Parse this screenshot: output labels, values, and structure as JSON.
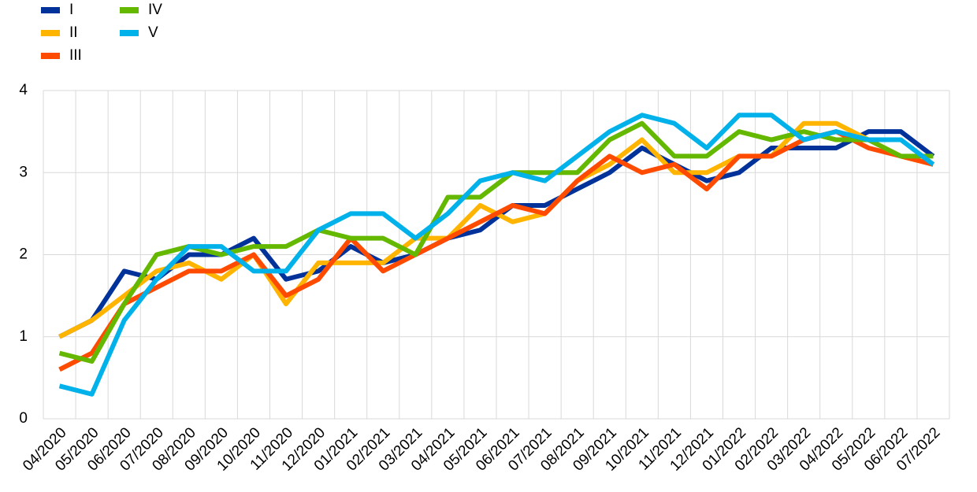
{
  "chart_data": {
    "type": "line",
    "categories": [
      "04/2020",
      "05/2020",
      "06/2020",
      "07/2020",
      "08/2020",
      "09/2020",
      "10/2020",
      "11/2020",
      "12/2020",
      "01/2021",
      "02/2021",
      "03/2021",
      "04/2021",
      "05/2021",
      "06/2021",
      "07/2021",
      "08/2021",
      "09/2021",
      "10/2021",
      "11/2021",
      "12/2021",
      "01/2022",
      "02/2022",
      "03/2022",
      "04/2022",
      "05/2022",
      "06/2022",
      "07/2022"
    ],
    "series": [
      {
        "name": "I",
        "color": "#003299",
        "values": [
          1.0,
          1.2,
          1.8,
          1.7,
          2.0,
          2.0,
          2.2,
          1.7,
          1.8,
          2.1,
          1.9,
          2.0,
          2.2,
          2.3,
          2.6,
          2.6,
          2.8,
          3.0,
          3.3,
          3.1,
          2.9,
          3.0,
          3.3,
          3.3,
          3.3,
          3.5,
          3.5,
          3.2
        ]
      },
      {
        "name": "II",
        "color": "#ffb400",
        "values": [
          1.0,
          1.2,
          1.5,
          1.8,
          1.9,
          1.7,
          2.0,
          1.4,
          1.9,
          1.9,
          1.9,
          2.2,
          2.2,
          2.6,
          2.4,
          2.5,
          2.9,
          3.1,
          3.4,
          3.0,
          3.0,
          3.2,
          3.2,
          3.6,
          3.6,
          3.4,
          3.2,
          3.1
        ]
      },
      {
        "name": "III",
        "color": "#ff4b00",
        "values": [
          0.6,
          0.8,
          1.4,
          1.6,
          1.8,
          1.8,
          2.0,
          1.5,
          1.7,
          2.2,
          1.8,
          2.0,
          2.2,
          2.4,
          2.6,
          2.5,
          2.9,
          3.2,
          3.0,
          3.1,
          2.8,
          3.2,
          3.2,
          3.4,
          3.5,
          3.3,
          3.2,
          3.1
        ]
      },
      {
        "name": "IV",
        "color": "#65b800",
        "values": [
          0.8,
          0.7,
          1.4,
          2.0,
          2.1,
          2.0,
          2.1,
          2.1,
          2.3,
          2.2,
          2.2,
          2.0,
          2.7,
          2.7,
          3.0,
          3.0,
          3.0,
          3.4,
          3.6,
          3.2,
          3.2,
          3.5,
          3.4,
          3.5,
          3.4,
          3.4,
          3.2,
          3.2
        ]
      },
      {
        "name": "V",
        "color": "#00b1ea",
        "values": [
          0.4,
          0.3,
          1.2,
          1.7,
          2.1,
          2.1,
          1.8,
          1.8,
          2.3,
          2.5,
          2.5,
          2.2,
          2.5,
          2.9,
          3.0,
          2.9,
          3.2,
          3.5,
          3.7,
          3.6,
          3.3,
          3.7,
          3.7,
          3.4,
          3.5,
          3.4,
          3.4,
          3.1
        ]
      }
    ],
    "ylim": [
      0,
      4
    ],
    "yticks": [
      0,
      1,
      2,
      3,
      4
    ],
    "grid": true,
    "legend": "top-left"
  }
}
